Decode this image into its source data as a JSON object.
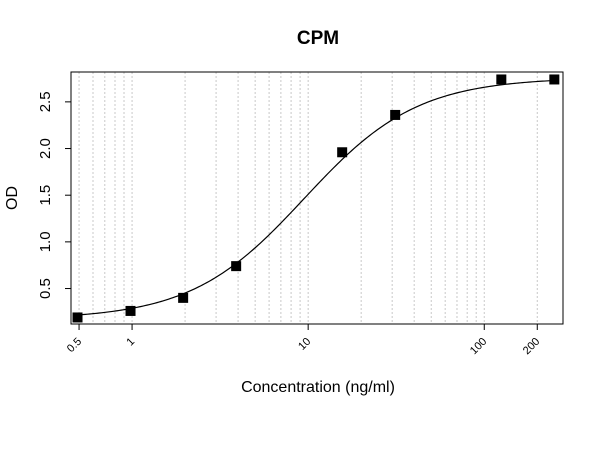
{
  "chart_data": {
    "type": "scatter",
    "title": "CPM",
    "xlabel": "Concentration (ng/ml)",
    "ylabel": "OD",
    "x_scale": "log",
    "xlim": [
      0.45,
      280
    ],
    "ylim": [
      0.12,
      2.82
    ],
    "x_ticks": [
      0.5,
      1,
      10,
      100,
      200
    ],
    "x_tick_labels": [
      "0.5",
      "1",
      "10",
      "100",
      "200"
    ],
    "y_ticks": [
      0.5,
      1.0,
      1.5,
      2.0,
      2.5
    ],
    "y_tick_labels": [
      "0.5",
      "1.0",
      "1.5",
      "2.0",
      "2.5"
    ],
    "grid": "vertical dotted at log minor ticks",
    "marker": "filled square",
    "fit": "4-parameter logistic curve",
    "series": [
      {
        "x": [
          0.49,
          0.98,
          1.95,
          3.9,
          15.6,
          31.2,
          125,
          250
        ],
        "y": [
          0.19,
          0.26,
          0.4,
          0.74,
          1.96,
          2.36,
          2.74,
          2.74
        ]
      }
    ],
    "fit_params": {
      "bottom": 0.17,
      "top": 2.76,
      "ec50": 9.5,
      "hill": 1.35
    }
  }
}
